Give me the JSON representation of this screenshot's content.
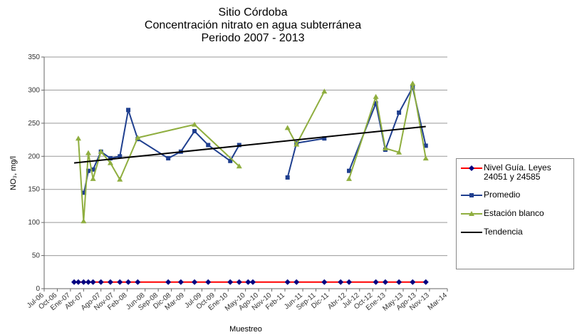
{
  "chart_data": {
    "type": "line",
    "title": [
      "Sitio Córdoba",
      "Concentración nitrato en agua subterránea",
      "Periodo 2007 -  2013"
    ],
    "x_label": "Muestreo",
    "y_label": "NO₃, mg/l",
    "xlim": [
      2006.5,
      2014.17
    ],
    "xticks": [
      {
        "value": 2006.5,
        "label": "Jul-06"
      },
      {
        "value": 2006.75,
        "label": "Oct-06"
      },
      {
        "value": 2007.0,
        "label": "Ene-07"
      },
      {
        "value": 2007.25,
        "label": "Abr-07"
      },
      {
        "value": 2007.58,
        "label": "Ago-07"
      },
      {
        "value": 2007.83,
        "label": "Nov-07"
      },
      {
        "value": 2008.08,
        "label": "Feb-08"
      },
      {
        "value": 2008.42,
        "label": "Jun-08"
      },
      {
        "value": 2008.67,
        "label": "Sep-08"
      },
      {
        "value": 2008.92,
        "label": "Dic-08"
      },
      {
        "value": 2009.17,
        "label": "Mar-09"
      },
      {
        "value": 2009.5,
        "label": "Jul-09"
      },
      {
        "value": 2009.75,
        "label": "Oct-09"
      },
      {
        "value": 2010.0,
        "label": "Ene-10"
      },
      {
        "value": 2010.33,
        "label": "May-10"
      },
      {
        "value": 2010.58,
        "label": "Ago-10"
      },
      {
        "value": 2010.83,
        "label": "Nov-10"
      },
      {
        "value": 2011.08,
        "label": "Feb-11"
      },
      {
        "value": 2011.42,
        "label": "Jun-11"
      },
      {
        "value": 2011.67,
        "label": "Sep-11"
      },
      {
        "value": 2011.92,
        "label": "Dic-11"
      },
      {
        "value": 2012.25,
        "label": "Abr-12"
      },
      {
        "value": 2012.5,
        "label": "Jul-12"
      },
      {
        "value": 2012.75,
        "label": "Oct-12"
      },
      {
        "value": 2013.0,
        "label": "Ene-13"
      },
      {
        "value": 2013.33,
        "label": "May-13"
      },
      {
        "value": 2013.58,
        "label": "Ago-13"
      },
      {
        "value": 2013.83,
        "label": "Nov-13"
      },
      {
        "value": 2014.17,
        "label": "Mar-14"
      }
    ],
    "ylim": [
      0,
      350
    ],
    "yticks": [
      0,
      50,
      100,
      150,
      200,
      250,
      300,
      350
    ],
    "grid": true,
    "legend": "right",
    "series": [
      {
        "name": "Nivel Guía. Leyes 24051 y 24585",
        "color": "#ff0000",
        "marker_color": "#000080",
        "marker": "diamond",
        "x": [
          2007.07,
          2007.15,
          2007.25,
          2007.34,
          2007.43,
          2007.58,
          2007.76,
          2007.94,
          2008.1,
          2008.28,
          2008.86,
          2009.1,
          2009.36,
          2009.62,
          2010.04,
          2010.21,
          2010.38,
          2010.47,
          2011.13,
          2011.3,
          2011.83,
          2012.14,
          2012.3,
          2012.81,
          2012.99,
          2013.25,
          2013.51,
          2013.76
        ],
        "values": [
          10,
          10,
          10,
          10,
          10,
          10,
          10,
          10,
          10,
          10,
          10,
          10,
          10,
          10,
          10,
          10,
          10,
          10,
          10,
          10,
          10,
          10,
          10,
          10,
          10,
          10,
          10,
          10
        ]
      },
      {
        "name": "Promedio",
        "color": "#1f3f8f",
        "marker_color": "#1f3f8f",
        "marker": "square",
        "x": [
          2007.26,
          2007.34,
          2007.43,
          2007.58,
          2007.76,
          2007.94,
          2008.1,
          2008.28,
          2008.86,
          2009.1,
          2009.36,
          2009.62,
          2010.04,
          2010.21,
          null,
          2011.13,
          2011.3,
          2011.83,
          null,
          2012.3,
          2012.81,
          2012.99,
          2013.25,
          2013.51,
          2013.76
        ],
        "values": [
          145,
          178,
          180,
          207,
          197,
          200,
          270,
          226,
          197,
          207,
          238,
          217,
          193,
          217,
          null,
          168,
          220,
          227,
          null,
          178,
          280,
          210,
          266,
          304,
          216
        ]
      },
      {
        "name": "Estación blanco",
        "color": "#8fae3f",
        "marker_color": "#8fae3f",
        "marker": "triangle",
        "x": [
          2007.15,
          2007.25,
          2007.34,
          2007.43,
          2007.58,
          2007.76,
          2007.94,
          2008.28,
          2009.36,
          2010.21,
          null,
          2011.13,
          2011.3,
          2011.83,
          null,
          2012.3,
          2012.81,
          2012.99,
          2013.25,
          2013.51,
          2013.76
        ],
        "values": [
          227,
          102,
          205,
          166,
          207,
          190,
          165,
          228,
          248,
          185,
          null,
          243,
          218,
          298,
          null,
          166,
          290,
          212,
          206,
          310,
          197
        ]
      },
      {
        "name": "Tendencia",
        "color": "#000000",
        "marker": "none",
        "x": [
          2007.07,
          2013.76
        ],
        "values": [
          190,
          245
        ]
      }
    ]
  }
}
